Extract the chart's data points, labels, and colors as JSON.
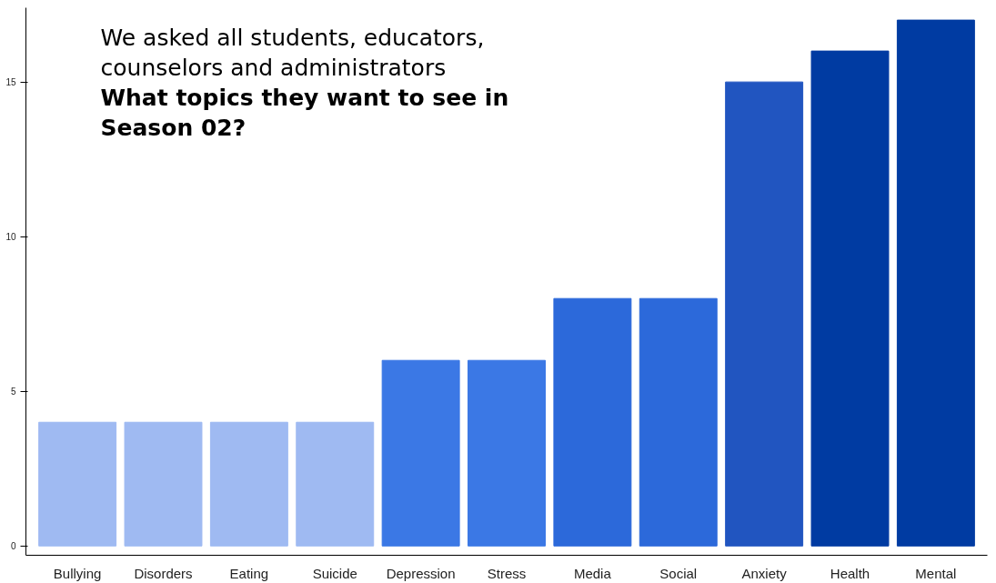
{
  "chart_data": {
    "type": "bar",
    "title": "We asked all students, educators, counselors and administrators",
    "subtitle": "What topics they want to see in Season 02?",
    "categories": [
      "Bullying",
      "Disorders",
      "Eating",
      "Suicide",
      "Depression",
      "Stress",
      "Media",
      "Social",
      "Anxiety",
      "Health",
      "Mental"
    ],
    "values": [
      4,
      4,
      4,
      4,
      6,
      6,
      8,
      8,
      15,
      16,
      17
    ],
    "colors": [
      "#9fbaf2",
      "#9fbaf2",
      "#9fbaf2",
      "#9fbaf2",
      "#3b78e5",
      "#3b78e5",
      "#2c69da",
      "#2c69da",
      "#2155c0",
      "#003ba2",
      "#003ba2"
    ],
    "ylim": [
      -0.3,
      17.4
    ],
    "yticks": [
      0,
      5,
      10,
      15
    ],
    "grid": false
  }
}
